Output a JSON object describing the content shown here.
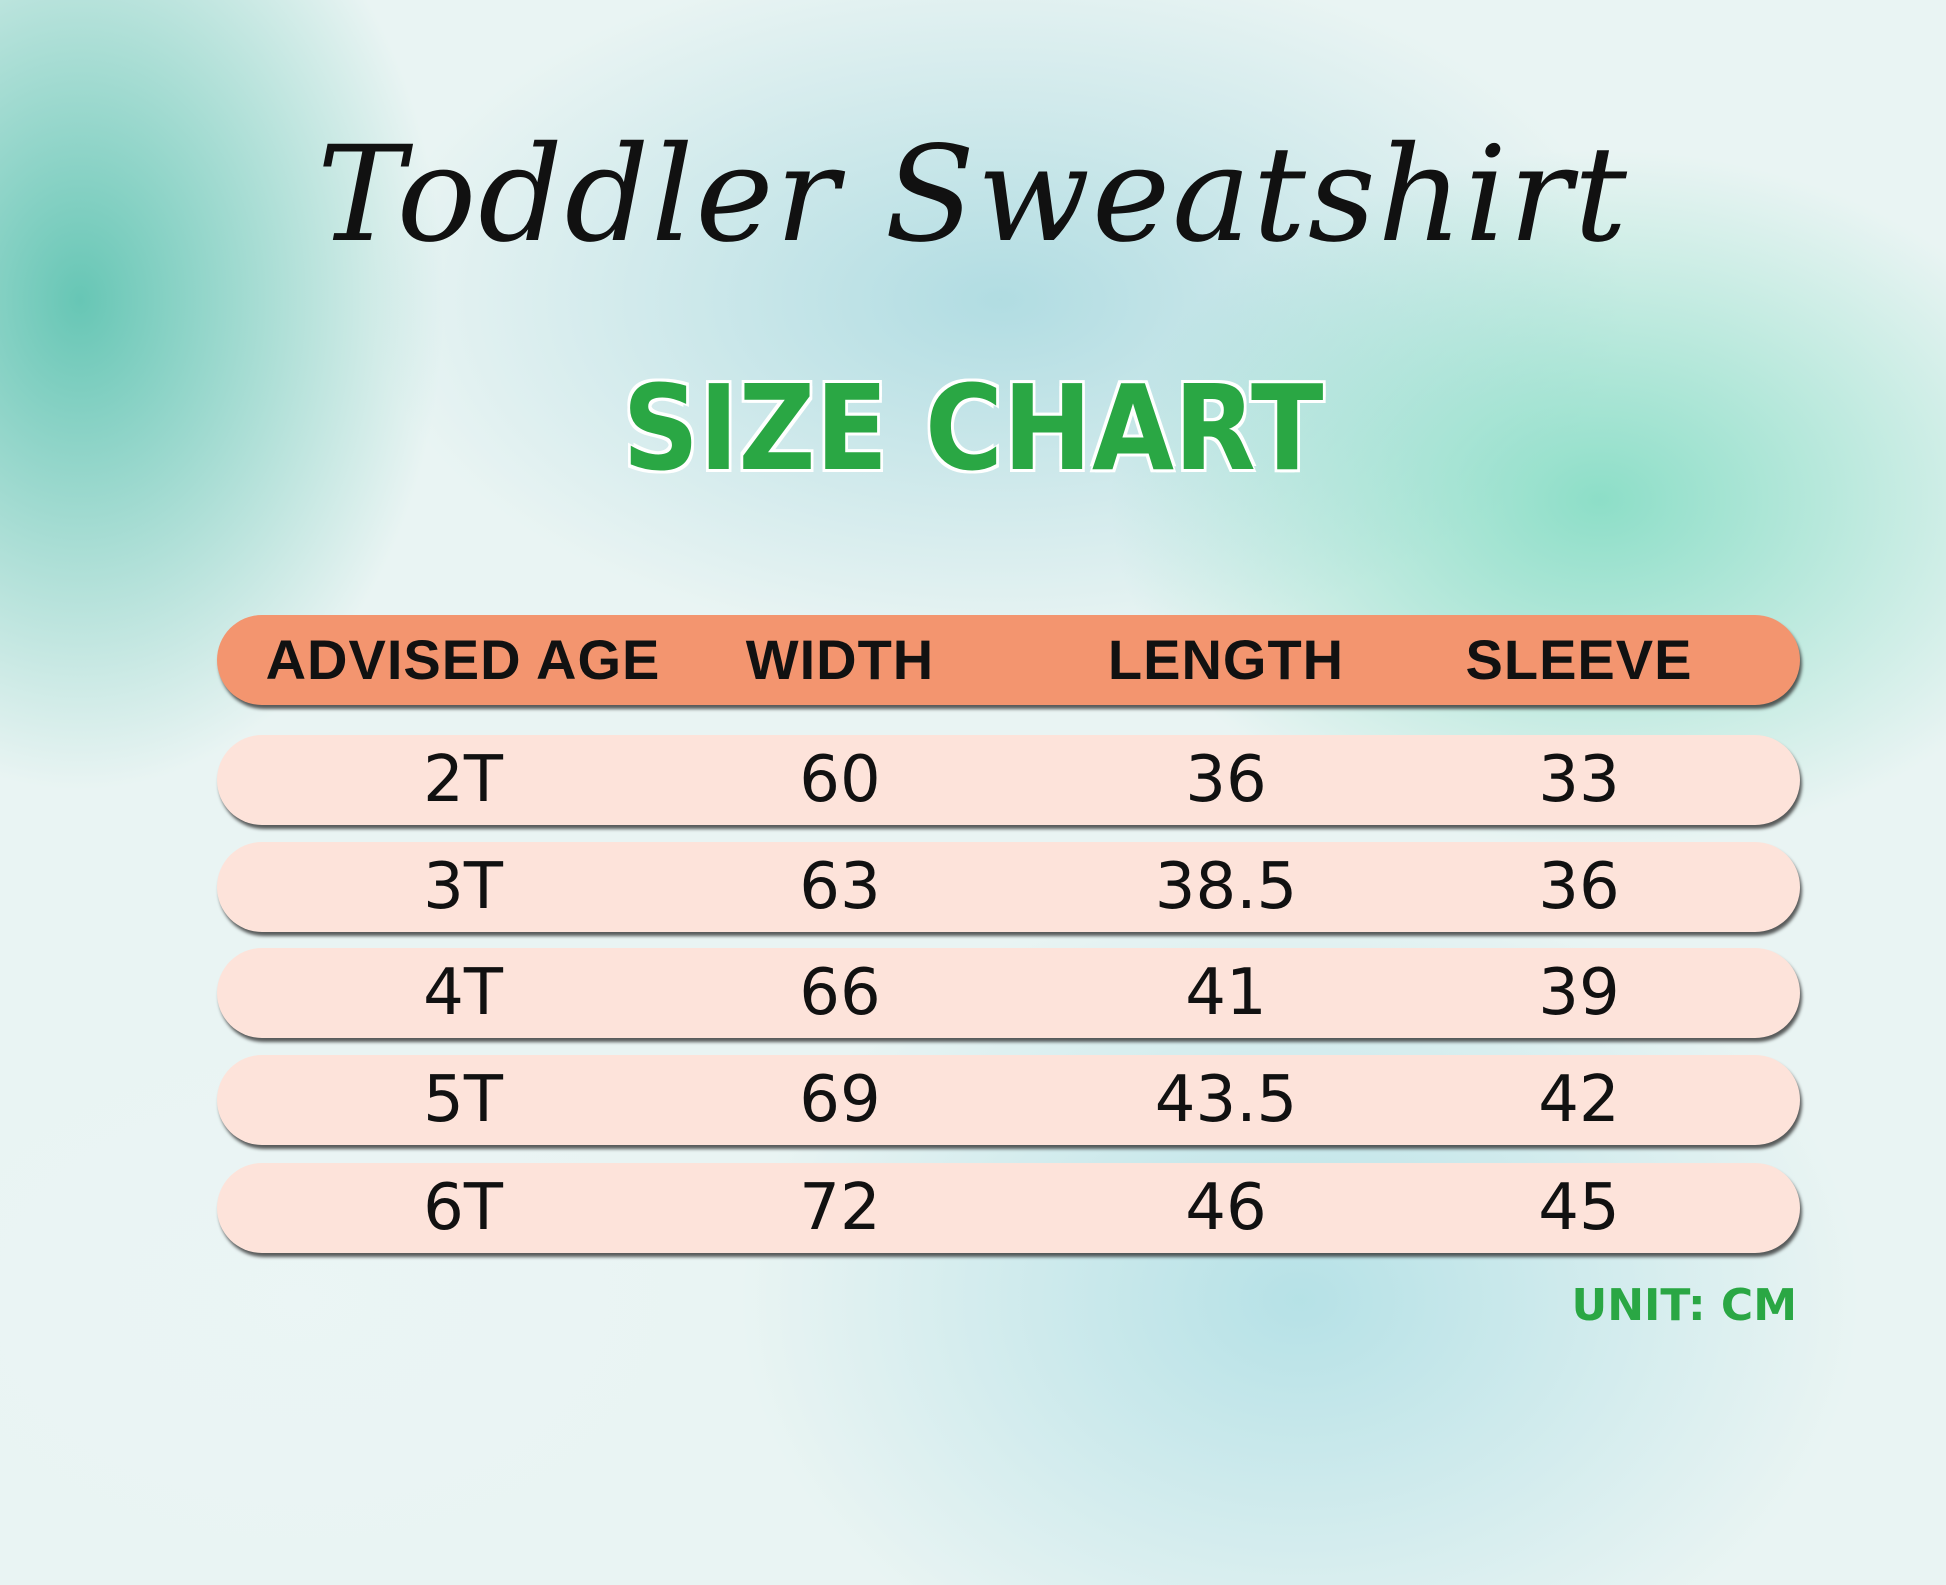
{
  "title": "Toddler Sweatshirt",
  "subtitle": "SIZE CHART",
  "colors": {
    "header": "#f3956f",
    "row": "#fde3da",
    "accent": "#2aa744"
  },
  "table": {
    "headers": [
      "ADVISED AGE",
      "WIDTH",
      "LENGTH",
      "SLEEVE"
    ],
    "rows": [
      [
        "2T",
        "60",
        "36",
        "33"
      ],
      [
        "3T",
        "63",
        "38.5",
        "36"
      ],
      [
        "4T",
        "66",
        "41",
        "39"
      ],
      [
        "5T",
        "69",
        "43.5",
        "42"
      ],
      [
        "6T",
        "72",
        "46",
        "45"
      ]
    ]
  },
  "unit": "UNIT: CM"
}
